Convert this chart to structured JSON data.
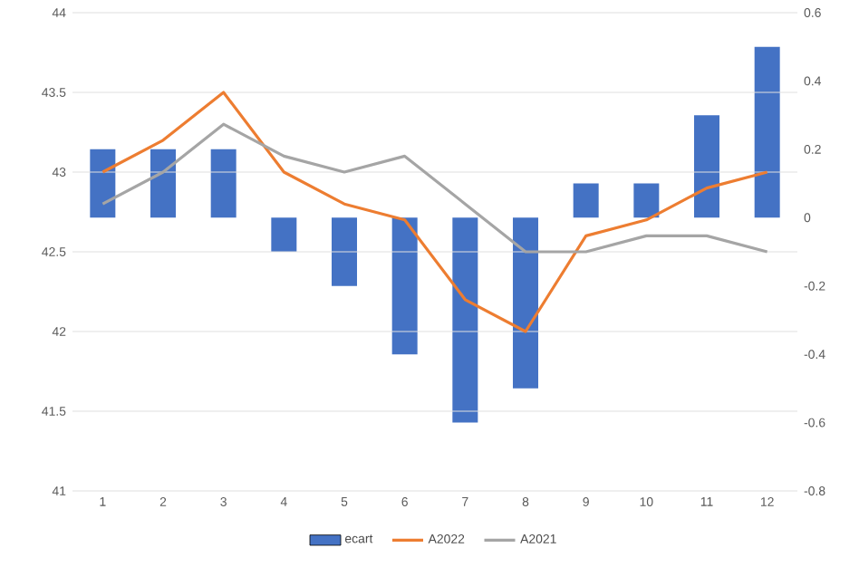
{
  "chart_data": {
    "type": "bar",
    "categories": [
      "1",
      "2",
      "3",
      "4",
      "5",
      "6",
      "7",
      "8",
      "9",
      "10",
      "11",
      "12"
    ],
    "series": [
      {
        "name": "ecart",
        "axis": "y2",
        "color": "#4472c4",
        "values": [
          0.2,
          0.2,
          0.2,
          -0.1,
          -0.2,
          -0.4,
          -0.6,
          -0.5,
          0.1,
          0.1,
          0.3,
          0.5
        ]
      },
      {
        "name": "A2022",
        "type": "line",
        "color": "#ed7d31",
        "values": [
          43.0,
          43.2,
          43.5,
          43.0,
          42.8,
          42.7,
          42.2,
          42.0,
          42.6,
          42.7,
          42.9,
          43.0
        ]
      },
      {
        "name": "A2021",
        "type": "line",
        "color": "#a5a5a5",
        "values": [
          42.8,
          43.0,
          43.3,
          43.1,
          43.0,
          43.1,
          42.8,
          42.5,
          42.5,
          42.6,
          42.6,
          42.5
        ]
      }
    ],
    "ylim": [
      41,
      44
    ],
    "yticks": [
      41,
      41.5,
      42,
      42.5,
      43,
      43.5,
      44
    ],
    "y2lim": [
      -0.8,
      0.6
    ],
    "y2ticks": [
      -0.8,
      -0.6,
      -0.4,
      -0.2,
      0,
      0.2,
      0.4,
      0.6
    ],
    "grid": "y",
    "legend": "bottom",
    "marker": "none",
    "line_style": "solid"
  }
}
